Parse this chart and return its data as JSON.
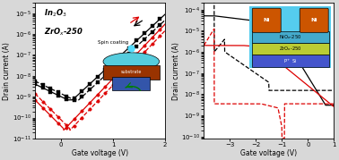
{
  "left_panel": {
    "xlabel": "Gate voltage (V)",
    "ylabel": "Drain current (A)",
    "xlim": [
      -0.5,
      2.0
    ],
    "ylim": [
      1e-11,
      3e-05
    ],
    "xticks": [
      0,
      1,
      2
    ],
    "legend_In2O3": "In$_2$O$_3$",
    "legend_ZrOx": "ZrO$_x$-250",
    "spin_text": "Spin coating",
    "substrate_text": "substrate"
  },
  "right_panel": {
    "xlabel": "Gate voltage (V)",
    "ylabel": "Drain current (A)",
    "xlim": [
      -4.0,
      1.0
    ],
    "ylim": [
      8e-11,
      0.0002
    ],
    "xticks": [
      -3,
      -2,
      -1,
      0,
      1
    ],
    "label_NiOx": "NiO$_x$-250",
    "label_ZrOx": "ZrO$_x$-250",
    "label_PSi": "P$^+$ Si",
    "label_Ni": "Ni"
  },
  "black": "#000000",
  "red": "#dd0000",
  "panel_bg": "#ffffff",
  "fig_bg": "#d8d8d8"
}
